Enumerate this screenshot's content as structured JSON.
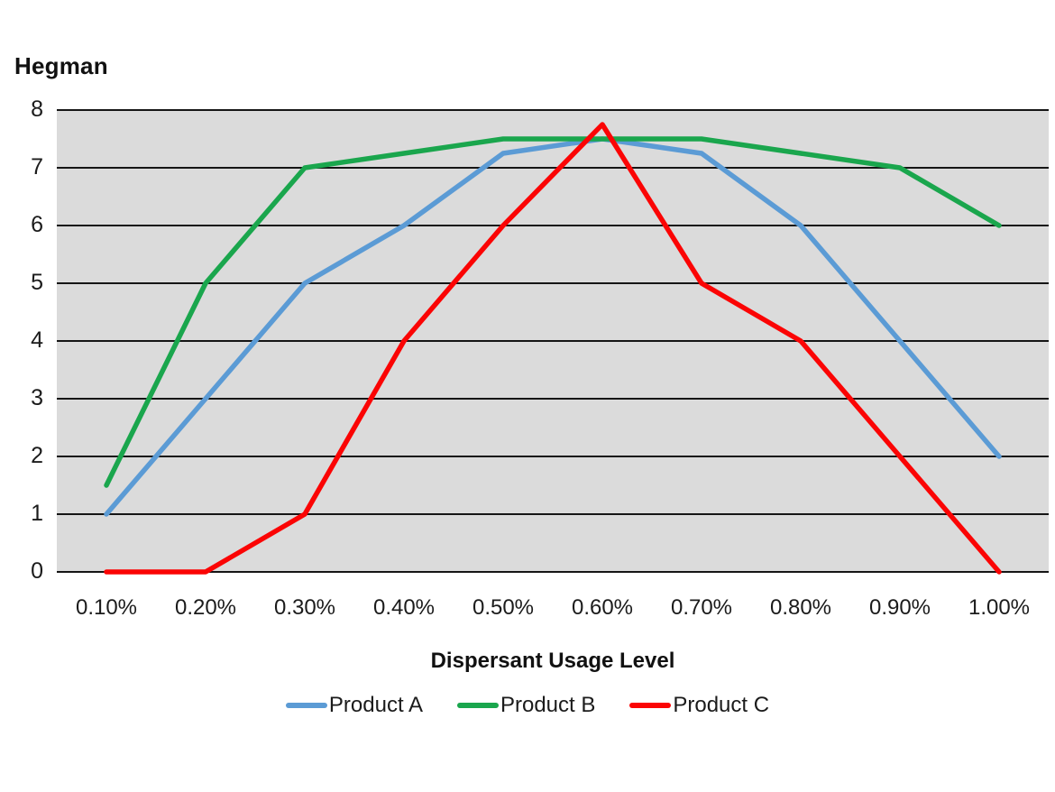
{
  "chart_data": {
    "type": "line",
    "title": "Hegman",
    "xlabel": "Dispersant Usage Level",
    "ylabel": "",
    "categories": [
      "0.10%",
      "0.20%",
      "0.30%",
      "0.40%",
      "0.50%",
      "0.60%",
      "0.70%",
      "0.80%",
      "0.90%",
      "1.00%"
    ],
    "series": [
      {
        "name": "Product A",
        "color": "#5B9BD5",
        "values": [
          1,
          3,
          5,
          6,
          7.25,
          7.5,
          7.25,
          6,
          4,
          2
        ]
      },
      {
        "name": "Product B",
        "color": "#1AA64D",
        "values": [
          1.5,
          5,
          7,
          7.25,
          7.5,
          7.5,
          7.5,
          7.25,
          7,
          6
        ]
      },
      {
        "name": "Product C",
        "color": "#FB0404",
        "values": [
          0,
          0,
          1,
          4,
          6,
          7.75,
          5,
          4,
          2,
          0
        ]
      }
    ],
    "ylim": [
      0,
      8
    ],
    "ytick_step": 1,
    "yticks": [
      "0",
      "1",
      "2",
      "3",
      "4",
      "5",
      "6",
      "7",
      "8"
    ],
    "grid": "horizontal",
    "gridline_color": "#151515",
    "plot_bg": "#DBDBDB",
    "legend_position": "bottom"
  }
}
